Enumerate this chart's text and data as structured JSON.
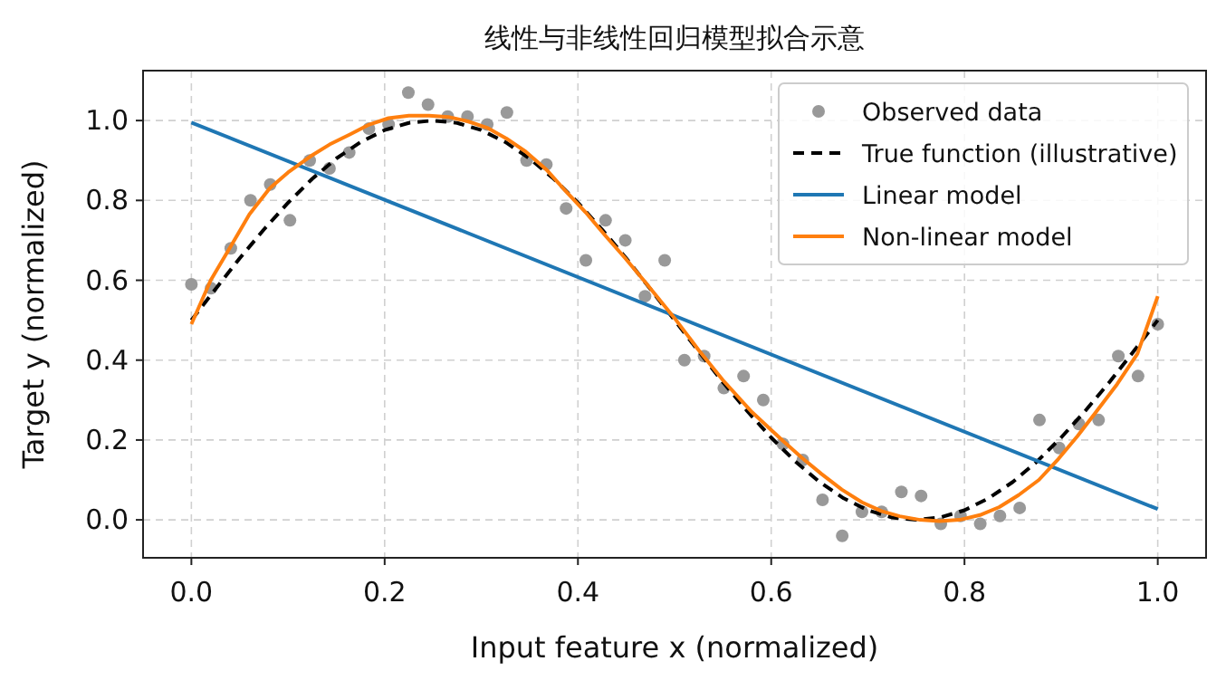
{
  "chart_data": {
    "type": "line",
    "title": "线性与非线性回归模型拟合示意",
    "xlabel": "Input feature x (normalized)",
    "ylabel": "Target y (normalized)",
    "xlim": [
      -0.05,
      1.05
    ],
    "ylim": [
      -0.095,
      1.125
    ],
    "xticks": [
      {
        "value": 0,
        "label": "0.0"
      },
      0.2,
      0.4,
      0.6,
      0.8,
      {
        "value": 1,
        "label": "1.0"
      }
    ],
    "yticks": [
      {
        "value": 0,
        "label": "0.0"
      },
      0.2,
      0.4,
      0.6,
      0.8,
      {
        "value": 1,
        "label": "1.0"
      }
    ],
    "grid": true,
    "legend": "top right",
    "series": [
      {
        "name": "Observed data",
        "type": "scatter",
        "marker": "circle",
        "color": "#999999",
        "x": [
          0,
          0.0204,
          0.0408,
          0.0612,
          0.0816,
          0.102,
          0.1224,
          0.1429,
          0.1633,
          0.1837,
          0.2041,
          0.2245,
          0.2449,
          0.2653,
          0.2857,
          0.3061,
          0.3265,
          0.3469,
          0.3673,
          0.3878,
          0.4082,
          0.4286,
          0.449,
          0.4694,
          0.4898,
          0.5102,
          0.5306,
          0.551,
          0.5714,
          0.5918,
          0.6122,
          0.6327,
          0.6531,
          0.6735,
          0.6939,
          0.7143,
          0.7347,
          0.7551,
          0.7755,
          0.7959,
          0.8163,
          0.8367,
          0.8571,
          0.8776,
          0.898,
          0.9184,
          0.9388,
          0.9592,
          0.9796,
          1.0
        ],
        "values": [
          0.59,
          0.58,
          0.68,
          0.8,
          0.84,
          0.75,
          0.9,
          0.88,
          0.92,
          0.98,
          0.99,
          1.07,
          1.04,
          1.01,
          1.01,
          0.99,
          1.02,
          0.9,
          0.89,
          0.78,
          0.65,
          0.75,
          0.7,
          0.56,
          0.65,
          0.4,
          0.41,
          0.33,
          0.36,
          0.3,
          0.19,
          0.15,
          0.05,
          -0.04,
          0.02,
          0.02,
          0.07,
          0.06,
          -0.01,
          0.01,
          -0.01,
          0.01,
          0.03,
          0.25,
          0.18,
          0.24,
          0.25,
          0.41,
          0.36,
          0.49
        ]
      },
      {
        "name": "True function (illustrative)",
        "line_style": "dashed",
        "color": "#000000",
        "x": [
          0,
          0.025,
          0.05,
          0.075,
          0.1,
          0.125,
          0.15,
          0.175,
          0.2,
          0.225,
          0.25,
          0.275,
          0.3,
          0.325,
          0.35,
          0.375,
          0.4,
          0.425,
          0.45,
          0.475,
          0.5,
          0.525,
          0.55,
          0.575,
          0.6,
          0.625,
          0.65,
          0.675,
          0.7,
          0.725,
          0.75,
          0.775,
          0.8,
          0.825,
          0.85,
          0.875,
          0.9,
          0.925,
          0.95,
          0.975,
          1.0
        ],
        "values": [
          0.5,
          0.578,
          0.655,
          0.727,
          0.794,
          0.854,
          0.905,
          0.946,
          0.976,
          0.994,
          1.0,
          0.994,
          0.976,
          0.946,
          0.905,
          0.854,
          0.794,
          0.727,
          0.655,
          0.578,
          0.5,
          0.422,
          0.345,
          0.273,
          0.206,
          0.146,
          0.095,
          0.054,
          0.024,
          0.006,
          0.0,
          0.006,
          0.024,
          0.054,
          0.095,
          0.146,
          0.206,
          0.273,
          0.345,
          0.422,
          0.5
        ]
      },
      {
        "name": "Linear model",
        "line_style": "solid",
        "color": "#1f77b4",
        "x": [
          0,
          1
        ],
        "values": [
          0.995,
          0.027
        ]
      },
      {
        "name": "Non-linear model",
        "line_style": "solid",
        "color": "#ff7f0e",
        "x": [
          0,
          0.02,
          0.042,
          0.06,
          0.081,
          0.1,
          0.123,
          0.143,
          0.164,
          0.184,
          0.204,
          0.225,
          0.246,
          0.266,
          0.286,
          0.306,
          0.326,
          0.346,
          0.367,
          0.387,
          0.408,
          0.429,
          0.449,
          0.469,
          0.5,
          0.525,
          0.55,
          0.58,
          0.612,
          0.632,
          0.652,
          0.673,
          0.694,
          0.714,
          0.733,
          0.754,
          0.774,
          0.795,
          0.816,
          0.836,
          0.856,
          0.877,
          0.897,
          0.917,
          0.937,
          0.958,
          0.979,
          1.0
        ],
        "values": [
          0.49,
          0.6,
          0.69,
          0.765,
          0.83,
          0.87,
          0.91,
          0.94,
          0.965,
          0.99,
          1.006,
          1.012,
          1.012,
          1.009,
          0.998,
          0.982,
          0.955,
          0.922,
          0.878,
          0.824,
          0.77,
          0.71,
          0.655,
          0.597,
          0.505,
          0.425,
          0.35,
          0.27,
          0.198,
          0.155,
          0.115,
          0.076,
          0.044,
          0.022,
          0.009,
          0.0,
          -0.003,
          0.0,
          0.012,
          0.032,
          0.062,
          0.1,
          0.152,
          0.21,
          0.273,
          0.34,
          0.416,
          0.56
        ]
      }
    ]
  }
}
